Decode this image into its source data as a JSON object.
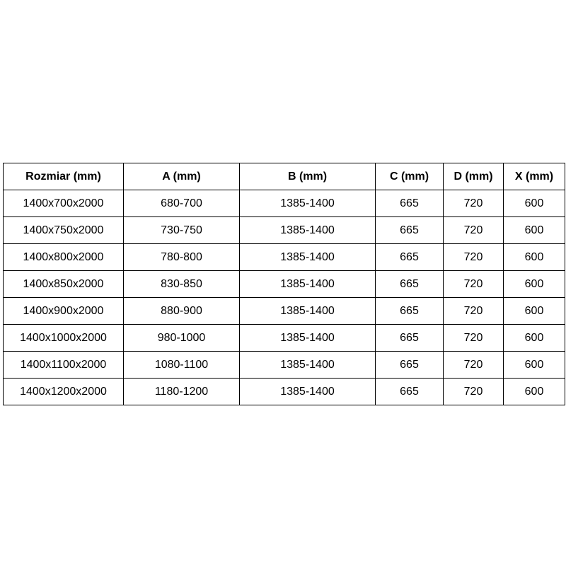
{
  "table": {
    "headers": [
      "Rozmiar (mm)",
      "A (mm)",
      "B (mm)",
      "C (mm)",
      "D (mm)",
      "X (mm)"
    ],
    "rows": [
      [
        "1400x700x2000",
        "680-700",
        "1385-1400",
        "665",
        "720",
        "600"
      ],
      [
        "1400x750x2000",
        "730-750",
        "1385-1400",
        "665",
        "720",
        "600"
      ],
      [
        "1400x800x2000",
        "780-800",
        "1385-1400",
        "665",
        "720",
        "600"
      ],
      [
        "1400x850x2000",
        "830-850",
        "1385-1400",
        "665",
        "720",
        "600"
      ],
      [
        "1400x900x2000",
        "880-900",
        "1385-1400",
        "665",
        "720",
        "600"
      ],
      [
        "1400x1000x2000",
        "980-1000",
        "1385-1400",
        "665",
        "720",
        "600"
      ],
      [
        "1400x1100x2000",
        "1080-1100",
        "1385-1400",
        "665",
        "720",
        "600"
      ],
      [
        "1400x1200x2000",
        "1180-1200",
        "1385-1400",
        "665",
        "720",
        "600"
      ]
    ]
  }
}
